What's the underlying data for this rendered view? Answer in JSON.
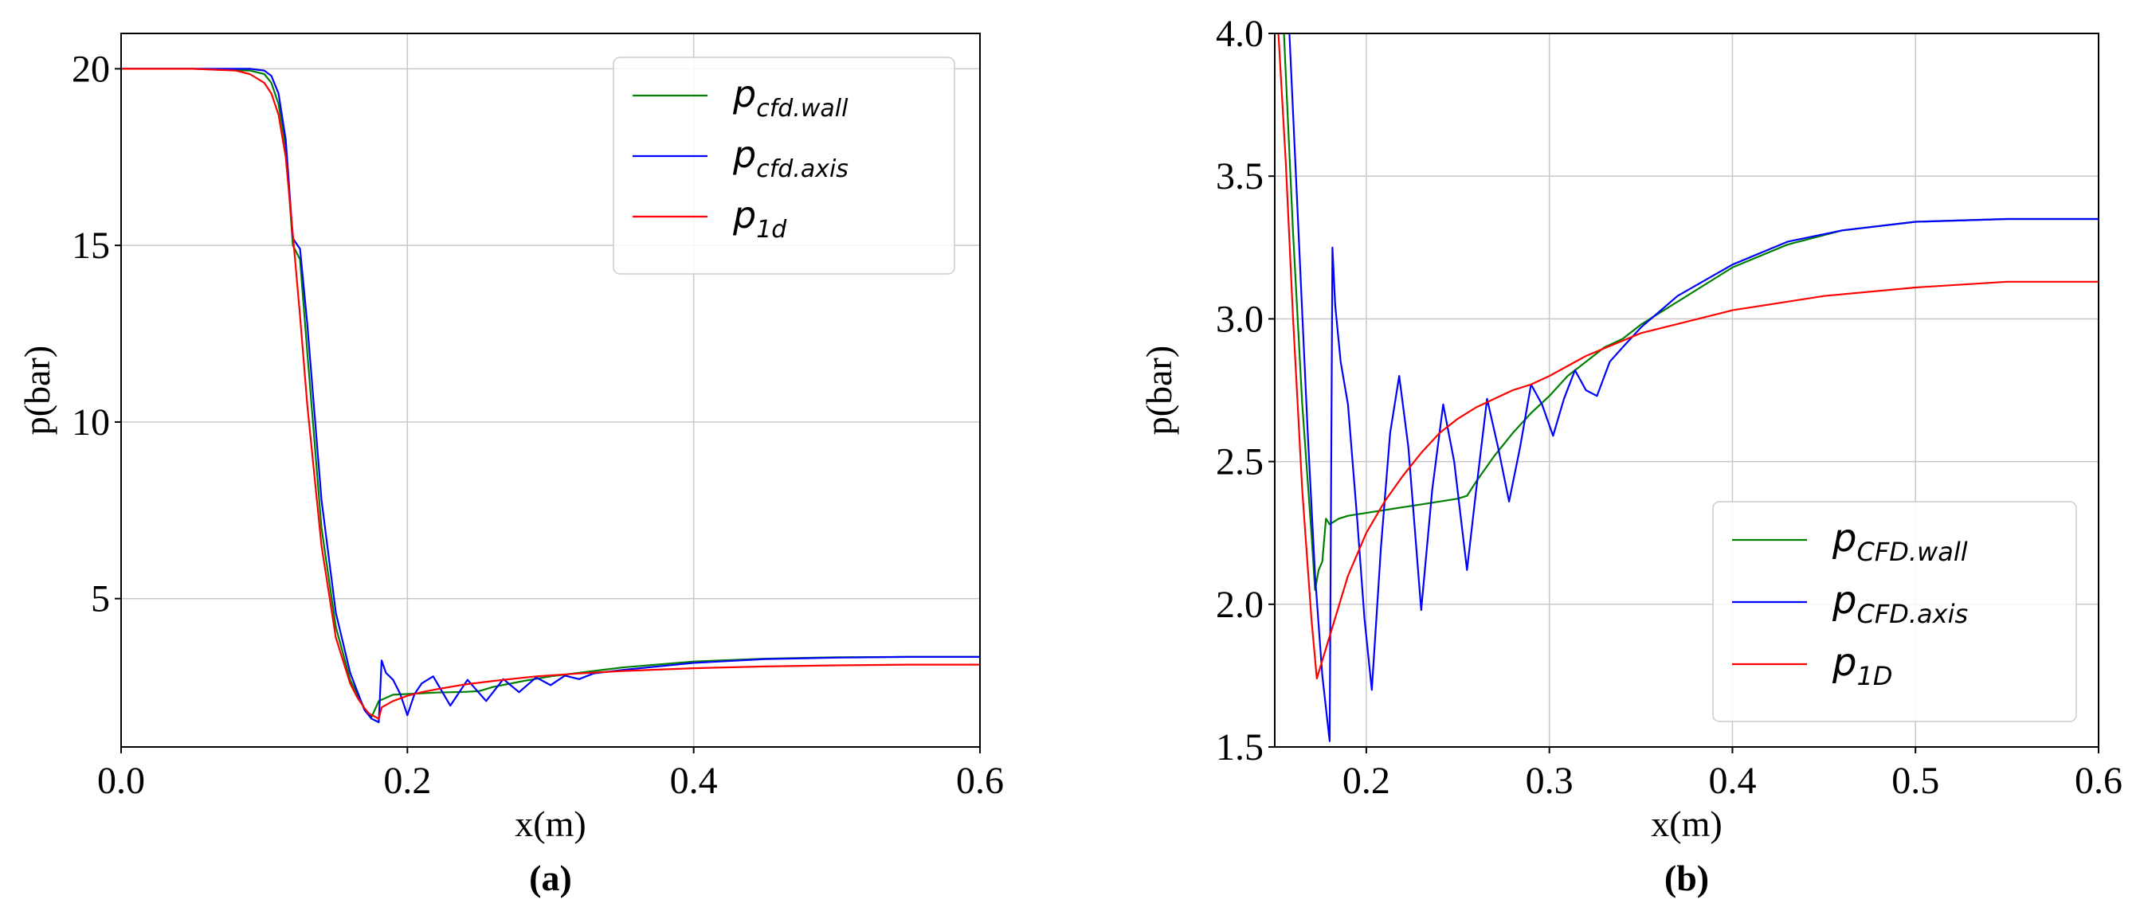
{
  "chart_data": [
    {
      "type": "line",
      "panel_label": "(a)",
      "xlabel": "x(m)",
      "ylabel": "p(bar)",
      "xlim": [
        0.0,
        0.6
      ],
      "ylim": [
        0.8,
        21.0
      ],
      "xticks": [
        0.0,
        0.2,
        0.4,
        0.6
      ],
      "xtick_labels": [
        "0.0",
        "0.2",
        "0.4",
        "0.6"
      ],
      "yticks": [
        5,
        10,
        15,
        20
      ],
      "ytick_labels": [
        "5",
        "10",
        "15",
        "20"
      ],
      "grid": true,
      "legend_position": "top-right",
      "series": [
        {
          "name": "p_cfd.wall",
          "legend_main": "p",
          "legend_sub": "cfd.wall",
          "color": "#008000",
          "x": [
            0.0,
            0.05,
            0.09,
            0.1,
            0.105,
            0.11,
            0.115,
            0.12,
            0.125,
            0.13,
            0.14,
            0.15,
            0.16,
            0.17,
            0.175,
            0.18,
            0.19,
            0.2,
            0.21,
            0.22,
            0.24,
            0.25,
            0.26,
            0.28,
            0.3,
            0.33,
            0.35,
            0.4,
            0.45,
            0.5,
            0.55,
            0.6
          ],
          "y": [
            20.0,
            20.0,
            19.95,
            19.85,
            19.6,
            19.0,
            17.8,
            15.0,
            14.6,
            12.0,
            7.0,
            4.2,
            2.7,
            1.9,
            1.65,
            2.1,
            2.28,
            2.3,
            2.32,
            2.34,
            2.36,
            2.38,
            2.5,
            2.66,
            2.8,
            2.95,
            3.05,
            3.22,
            3.3,
            3.34,
            3.35,
            3.35
          ]
        },
        {
          "name": "p_cfd.axis",
          "legend_main": "p",
          "legend_sub": "cfd.axis",
          "color": "#0000ff",
          "x": [
            0.0,
            0.05,
            0.09,
            0.1,
            0.105,
            0.11,
            0.115,
            0.12,
            0.125,
            0.13,
            0.14,
            0.15,
            0.16,
            0.17,
            0.175,
            0.18,
            0.182,
            0.185,
            0.19,
            0.195,
            0.2,
            0.205,
            0.21,
            0.218,
            0.23,
            0.242,
            0.255,
            0.267,
            0.278,
            0.29,
            0.3,
            0.31,
            0.32,
            0.33,
            0.35,
            0.4,
            0.45,
            0.5,
            0.55,
            0.6
          ],
          "y": [
            20.0,
            20.0,
            20.0,
            19.95,
            19.8,
            19.3,
            18.0,
            15.2,
            14.9,
            12.8,
            7.8,
            4.6,
            2.9,
            1.85,
            1.6,
            1.5,
            3.25,
            2.9,
            2.7,
            2.3,
            1.7,
            2.3,
            2.6,
            2.8,
            1.97,
            2.7,
            2.1,
            2.72,
            2.35,
            2.77,
            2.55,
            2.82,
            2.72,
            2.88,
            2.98,
            3.18,
            3.29,
            3.33,
            3.35,
            3.35
          ]
        },
        {
          "name": "p_1d",
          "legend_main": "p",
          "legend_sub": "1d",
          "color": "#ff0000",
          "x": [
            0.0,
            0.05,
            0.08,
            0.09,
            0.1,
            0.105,
            0.11,
            0.115,
            0.12,
            0.125,
            0.13,
            0.14,
            0.15,
            0.16,
            0.165,
            0.17,
            0.173,
            0.18,
            0.182,
            0.19,
            0.2,
            0.21,
            0.22,
            0.24,
            0.26,
            0.29,
            0.32,
            0.35,
            0.4,
            0.45,
            0.5,
            0.55,
            0.6
          ],
          "y": [
            20.0,
            20.0,
            19.95,
            19.85,
            19.6,
            19.3,
            18.7,
            17.5,
            15.3,
            13.0,
            10.5,
            6.5,
            3.9,
            2.6,
            2.2,
            1.9,
            1.75,
            1.6,
            1.92,
            2.1,
            2.25,
            2.35,
            2.43,
            2.57,
            2.67,
            2.8,
            2.88,
            2.95,
            3.03,
            3.08,
            3.11,
            3.13,
            3.13
          ]
        }
      ]
    },
    {
      "type": "line",
      "panel_label": "(b)",
      "xlabel": "x(m)",
      "ylabel": "p(bar)",
      "xlim": [
        0.15,
        0.6
      ],
      "ylim": [
        1.5,
        4.0
      ],
      "xticks": [
        0.2,
        0.3,
        0.4,
        0.5,
        0.6
      ],
      "xtick_labels": [
        "0.2",
        "0.3",
        "0.4",
        "0.5",
        "0.6"
      ],
      "yticks": [
        1.5,
        2.0,
        2.5,
        3.0,
        3.5,
        4.0
      ],
      "ytick_labels": [
        "1.5",
        "2.0",
        "2.5",
        "3.0",
        "3.5",
        "4.0"
      ],
      "grid": true,
      "legend_position": "bottom-right",
      "series": [
        {
          "name": "p_CFD.wall",
          "legend_main": "p",
          "legend_sub": "CFD.wall",
          "color": "#008000",
          "x": [
            0.155,
            0.16,
            0.165,
            0.17,
            0.172,
            0.174,
            0.176,
            0.178,
            0.18,
            0.185,
            0.19,
            0.2,
            0.21,
            0.22,
            0.23,
            0.24,
            0.25,
            0.255,
            0.26,
            0.27,
            0.28,
            0.29,
            0.3,
            0.31,
            0.32,
            0.33,
            0.34,
            0.35,
            0.37,
            0.4,
            0.43,
            0.46,
            0.5,
            0.55,
            0.6
          ],
          "y": [
            4.0,
            3.3,
            2.7,
            2.25,
            2.05,
            2.12,
            2.15,
            2.3,
            2.28,
            2.3,
            2.31,
            2.32,
            2.33,
            2.34,
            2.35,
            2.36,
            2.37,
            2.38,
            2.43,
            2.52,
            2.6,
            2.67,
            2.73,
            2.8,
            2.85,
            2.9,
            2.93,
            2.98,
            3.06,
            3.18,
            3.26,
            3.31,
            3.34,
            3.35,
            3.35
          ]
        },
        {
          "name": "p_CFD.axis",
          "legend_main": "p",
          "legend_sub": "CFD.axis",
          "color": "#0000ff",
          "x": [
            0.158,
            0.163,
            0.168,
            0.172,
            0.176,
            0.18,
            0.1815,
            0.183,
            0.186,
            0.19,
            0.195,
            0.199,
            0.203,
            0.208,
            0.213,
            0.218,
            0.223,
            0.23,
            0.236,
            0.242,
            0.248,
            0.255,
            0.26,
            0.266,
            0.272,
            0.278,
            0.284,
            0.29,
            0.296,
            0.302,
            0.308,
            0.314,
            0.32,
            0.326,
            0.333,
            0.34,
            0.35,
            0.37,
            0.4,
            0.43,
            0.46,
            0.5,
            0.55,
            0.6
          ],
          "y": [
            4.0,
            3.3,
            2.6,
            2.1,
            1.75,
            1.52,
            3.25,
            3.05,
            2.85,
            2.7,
            2.3,
            1.95,
            1.7,
            2.2,
            2.6,
            2.8,
            2.55,
            1.98,
            2.4,
            2.7,
            2.5,
            2.12,
            2.4,
            2.72,
            2.55,
            2.36,
            2.55,
            2.77,
            2.7,
            2.59,
            2.72,
            2.82,
            2.75,
            2.73,
            2.85,
            2.9,
            2.97,
            3.08,
            3.19,
            3.27,
            3.31,
            3.34,
            3.35,
            3.35
          ]
        },
        {
          "name": "p_1D",
          "legend_main": "p",
          "legend_sub": "1D",
          "color": "#ff0000",
          "x": [
            0.152,
            0.156,
            0.16,
            0.165,
            0.17,
            0.173,
            0.1815,
            0.19,
            0.2,
            0.21,
            0.22,
            0.23,
            0.24,
            0.25,
            0.26,
            0.27,
            0.28,
            0.29,
            0.3,
            0.32,
            0.35,
            0.4,
            0.45,
            0.5,
            0.55,
            0.6
          ],
          "y": [
            4.0,
            3.55,
            3.0,
            2.4,
            1.95,
            1.74,
            1.92,
            2.1,
            2.25,
            2.36,
            2.45,
            2.53,
            2.6,
            2.65,
            2.69,
            2.72,
            2.75,
            2.77,
            2.8,
            2.87,
            2.95,
            3.03,
            3.08,
            3.11,
            3.13,
            3.13
          ]
        }
      ]
    }
  ]
}
